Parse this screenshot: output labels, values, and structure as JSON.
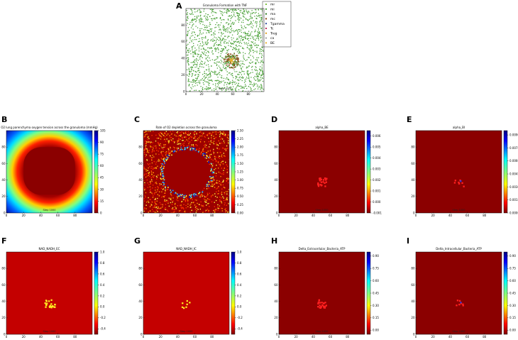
{
  "chart_data": [
    {
      "id": "A",
      "type": "scatter",
      "title": "Granuloma Formation with TNF",
      "xlim": [
        0,
        100
      ],
      "ylim": [
        0,
        100
      ],
      "xticks": [
        0,
        20,
        40,
        60,
        80
      ],
      "yticks": [
        0,
        20,
        40,
        60,
        80
      ],
      "legend": [
        "mr",
        "mi",
        "ma",
        "mc",
        "Tgamma",
        "Tc",
        "Treg",
        "ca",
        "BE"
      ],
      "colors": {
        "background_agents": "#4ca23a",
        "core": "#8b4513",
        "center": "#e8b030"
      },
      "status": "Step 1000"
    },
    {
      "id": "B",
      "type": "heatmap",
      "title": "O2 lung parenchyma oxygen tension across the granuloma (mmHg)",
      "xticks": [
        0,
        20,
        40,
        60,
        80
      ],
      "yticks": [
        0,
        20,
        40,
        60,
        80
      ],
      "colorbar": {
        "ticks": [
          "0",
          "15",
          "30",
          "45",
          "60",
          "75",
          "90",
          "105"
        ],
        "range": [
          0,
          105
        ]
      },
      "status": "Step 1000"
    },
    {
      "id": "C",
      "type": "heatmap",
      "title": "Rate of O2 depletion across the granuloma",
      "xticks": [
        0,
        20,
        40,
        60,
        80
      ],
      "yticks": [
        0,
        20,
        40,
        60,
        80
      ],
      "colorbar": {
        "ticks": [
          "0.00",
          "0.25",
          "0.50",
          "0.75",
          "1.00",
          "1.25",
          "1.50",
          "1.75",
          "2.00",
          "2.25",
          "2.50"
        ],
        "range": [
          0,
          2.5
        ]
      },
      "status": ""
    },
    {
      "id": "D",
      "type": "heatmap",
      "title": "alpha_BE",
      "xticks": [
        0,
        20,
        40,
        60,
        80
      ],
      "yticks": [
        0,
        20,
        40,
        60,
        80
      ],
      "colorbar": {
        "ticks": [
          "-0.001",
          "0.000",
          "0.001",
          "0.002",
          "0.003",
          "0.004",
          "0.005",
          "0.006"
        ],
        "range": [
          -0.001,
          0.0065
        ]
      },
      "status": "Step 1000"
    },
    {
      "id": "E",
      "type": "heatmap",
      "title": "alpha_BI",
      "xticks": [
        0,
        20,
        40,
        60,
        80
      ],
      "yticks": [
        0,
        20,
        40,
        60,
        80
      ],
      "colorbar": {
        "ticks": [
          "0.0000",
          "0.0015",
          "0.0030",
          "0.0045",
          "0.0060",
          "0.0075",
          "0.0090"
        ],
        "range": [
          0,
          0.0095
        ]
      },
      "status": "Step 1000"
    },
    {
      "id": "F",
      "type": "heatmap",
      "title": "NAD_NADH_EC",
      "xticks": [
        0,
        20,
        40,
        60,
        80
      ],
      "yticks": [
        0,
        20,
        40,
        60,
        80
      ],
      "colorbar": {
        "ticks": [
          "-0.4",
          "-0.2",
          "0.0",
          "0.2",
          "0.4",
          "0.6",
          "0.8",
          "1.0"
        ],
        "range": [
          -0.5,
          1.0
        ]
      },
      "status": "Step 1000"
    },
    {
      "id": "G",
      "type": "heatmap",
      "title": "NAD_NADH_IC",
      "xticks": [
        0,
        20,
        40,
        60,
        80
      ],
      "yticks": [
        0,
        20,
        40,
        60,
        80
      ],
      "colorbar": {
        "ticks": [
          "-0.4",
          "-0.2",
          "0.0",
          "0.2",
          "0.4",
          "0.6",
          "0.8",
          "1.0"
        ],
        "range": [
          -0.5,
          1.0
        ]
      },
      "status": "Step 1000"
    },
    {
      "id": "H",
      "type": "heatmap",
      "title": "Delta_Extracellular_Bacteria_ATP",
      "xticks": [
        0,
        20,
        40,
        60,
        80
      ],
      "yticks": [
        0,
        20,
        40,
        60,
        80
      ],
      "colorbar": {
        "ticks": [
          "0.00",
          "0.15",
          "0.30",
          "0.45",
          "0.60",
          "0.75",
          "0.90"
        ],
        "range": [
          -0.05,
          0.95
        ]
      },
      "status": "Step 1000"
    },
    {
      "id": "I",
      "type": "heatmap",
      "title": "Delta_Intracellular_Bacteria_ATP",
      "xticks": [
        0,
        20,
        40,
        60,
        80
      ],
      "yticks": [
        0,
        20,
        40,
        60,
        80
      ],
      "colorbar": {
        "ticks": [
          "0.00",
          "0.15",
          "0.30",
          "0.45",
          "0.60",
          "0.75",
          "0.90"
        ],
        "range": [
          -0.05,
          0.95
        ]
      },
      "status": "Step 1000"
    }
  ]
}
